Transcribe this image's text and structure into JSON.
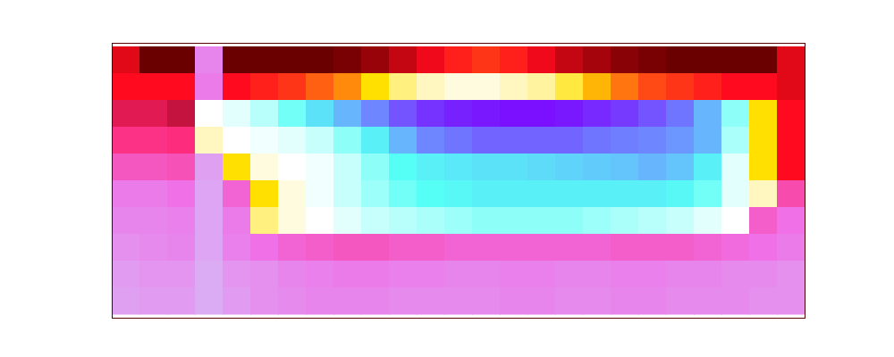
{
  "chart_data": {
    "type": "heatmap",
    "tick_labels": false,
    "zlim": [
      0,
      1
    ],
    "cells": [
      [
        0.38,
        0.3,
        0.3,
        0.08,
        0.3,
        0.3,
        0.3,
        0.3,
        0.31,
        0.33,
        0.36,
        0.39,
        0.41,
        0.42,
        0.41,
        0.39,
        0.36,
        0.34,
        0.32,
        0.31,
        0.3,
        0.3,
        0.3,
        0.3,
        0.38
      ],
      [
        0.4,
        0.4,
        0.4,
        0.1,
        0.4,
        0.41,
        0.42,
        0.44,
        0.46,
        0.5,
        0.54,
        0.56,
        0.57,
        0.57,
        0.56,
        0.55,
        0.52,
        0.48,
        0.45,
        0.43,
        0.42,
        0.41,
        0.4,
        0.4,
        0.38
      ],
      [
        0.26,
        0.26,
        0.27,
        0.58,
        0.6,
        0.63,
        0.68,
        0.74,
        0.8,
        0.86,
        0.92,
        0.96,
        0.98,
        0.99,
        1,
        1,
        0.99,
        0.97,
        0.95,
        0.92,
        0.88,
        0.8,
        0.66,
        0.5,
        0.4
      ],
      [
        0.22,
        0.22,
        0.23,
        0.56,
        0.58,
        0.59,
        0.6,
        0.62,
        0.66,
        0.72,
        0.8,
        0.86,
        0.88,
        0.9,
        0.9,
        0.9,
        0.9,
        0.88,
        0.87,
        0.86,
        0.84,
        0.8,
        0.64,
        0.5,
        0.4
      ],
      [
        0.16,
        0.16,
        0.17,
        0.03,
        0.5,
        0.57,
        0.58,
        0.59,
        0.62,
        0.66,
        0.7,
        0.72,
        0.73,
        0.74,
        0.74,
        0.75,
        0.76,
        0.77,
        0.78,
        0.8,
        0.78,
        0.72,
        0.6,
        0.5,
        0.4
      ],
      [
        0.1,
        0.1,
        0.12,
        0.02,
        0.14,
        0.5,
        0.57,
        0.59,
        0.62,
        0.65,
        0.68,
        0.7,
        0.71,
        0.72,
        0.72,
        0.72,
        0.72,
        0.72,
        0.72,
        0.72,
        0.71,
        0.68,
        0.6,
        0.56,
        0.18
      ],
      [
        0.08,
        0.08,
        0.09,
        0.02,
        0.1,
        0.54,
        0.57,
        0.58,
        0.6,
        0.62,
        0.63,
        0.64,
        0.65,
        0.66,
        0.66,
        0.66,
        0.66,
        0.65,
        0.64,
        0.63,
        0.62,
        0.6,
        0.58,
        0.15,
        0.12
      ],
      [
        0.06,
        0.07,
        0.08,
        0.02,
        0.09,
        0.12,
        0.14,
        0.15,
        0.16,
        0.16,
        0.15,
        0.15,
        0.14,
        0.14,
        0.14,
        0.14,
        0.14,
        0.14,
        0.15,
        0.15,
        0.15,
        0.14,
        0.13,
        0.12,
        0.1
      ],
      [
        0.04,
        0.05,
        0.05,
        0.01,
        0.05,
        0.06,
        0.08,
        0.09,
        0.1,
        0.1,
        0.09,
        0.09,
        0.08,
        0.08,
        0.09,
        0.09,
        0.08,
        0.08,
        0.09,
        0.09,
        0.08,
        0.08,
        0.07,
        0.07,
        0.06
      ],
      [
        0.03,
        0.04,
        0.04,
        0.01,
        0.04,
        0.06,
        0.07,
        0.08,
        0.08,
        0.08,
        0.07,
        0.07,
        0.07,
        0.07,
        0.08,
        0.08,
        0.07,
        0.07,
        0.08,
        0.08,
        0.07,
        0.07,
        0.07,
        0.06,
        0.06
      ]
    ]
  }
}
